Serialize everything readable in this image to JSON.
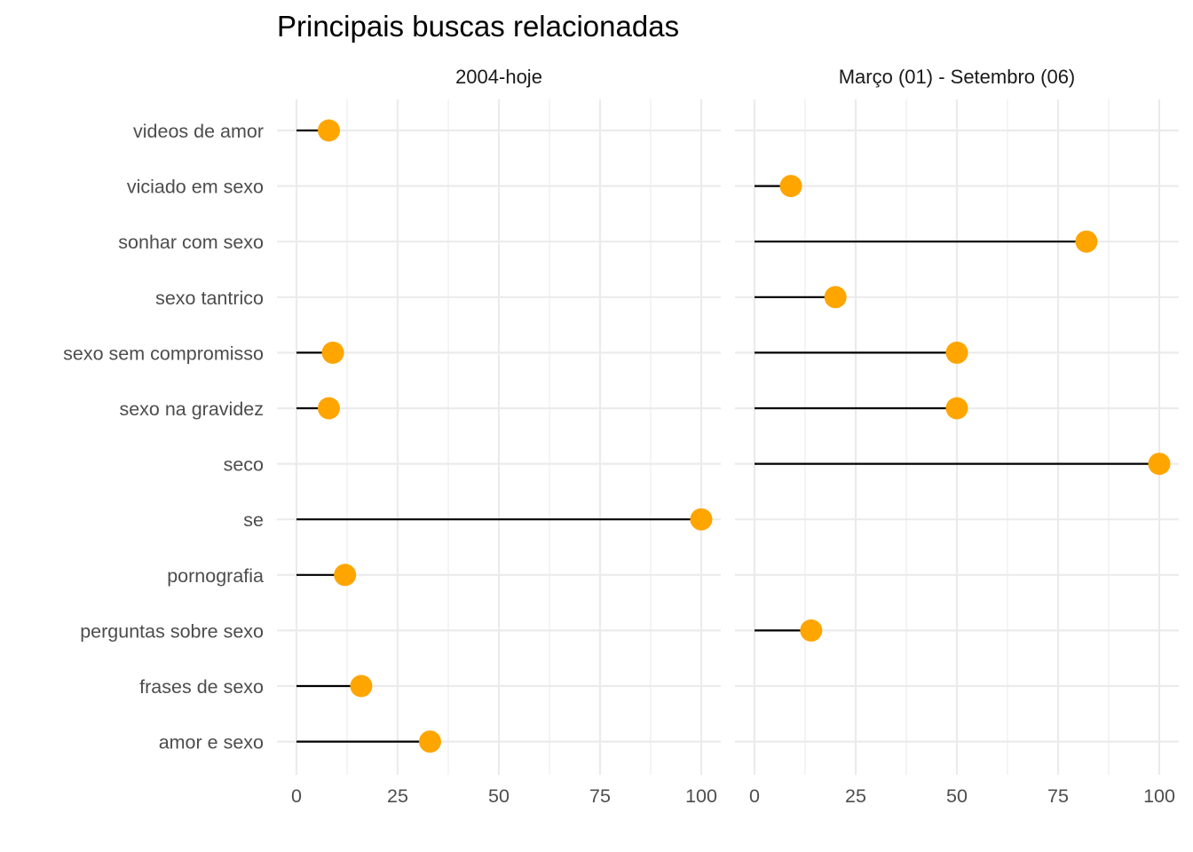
{
  "chart_data": {
    "type": "lollipop",
    "title": "Principais buscas relacionadas",
    "xlabel": "",
    "ylabel": "",
    "xlim": [
      0,
      100
    ],
    "x_ticks": [
      "0",
      "25",
      "50",
      "75",
      "100"
    ],
    "grid": true,
    "point_color": "#FFA500",
    "segment_color": "#000000",
    "categories": [
      "videos de amor",
      "viciado em sexo",
      "sonhar com sexo",
      "sexo tantrico",
      "sexo sem compromisso",
      "sexo na gravidez",
      "seco",
      "se",
      "pornografia",
      "perguntas sobre sexo",
      "frases de sexo",
      "amor e sexo"
    ],
    "panels": [
      {
        "name": "2004-hoje",
        "values": [
          8,
          null,
          null,
          null,
          9,
          8,
          null,
          100,
          12,
          null,
          16,
          33
        ]
      },
      {
        "name": "Março (01) - Setembro (06)",
        "values": [
          null,
          9,
          82,
          20,
          50,
          50,
          100,
          null,
          null,
          14,
          null,
          null
        ]
      }
    ]
  }
}
